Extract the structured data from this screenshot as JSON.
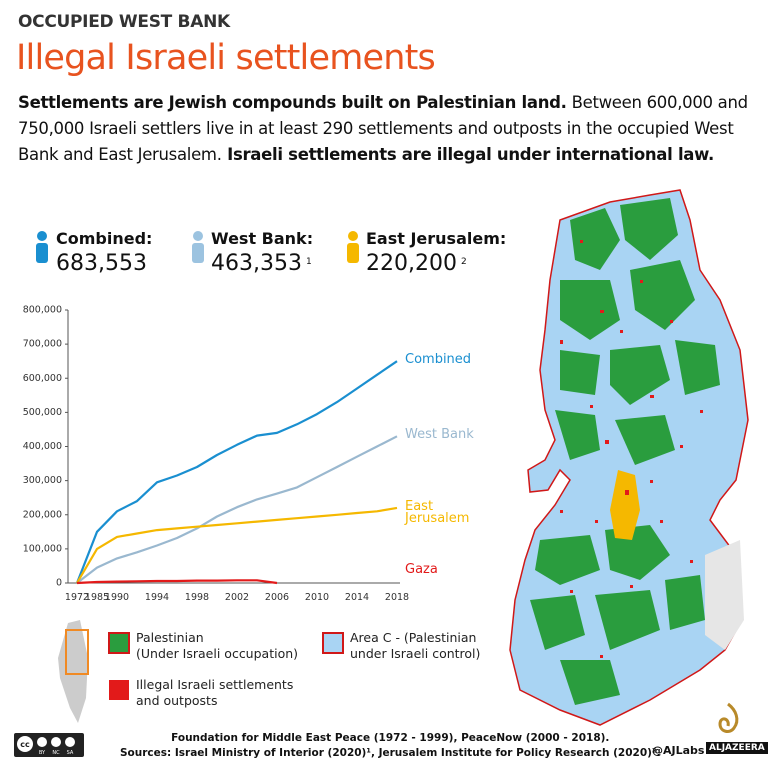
{
  "header": {
    "kicker": "OCCUPIED WEST BANK",
    "title": "Illegal Israeli settlements",
    "description": [
      {
        "text": "Settlements are Jewish compounds built on Palestinian land.",
        "bold": true
      },
      {
        "text": " Between 600,000 and 750,000 Israeli settlers live in at least 290 settlements and outposts in the occupied West Bank and East Jerusalem.",
        "bold": false
      },
      {
        "text": " Israeli settlements are illegal under international law.",
        "bold": true
      }
    ]
  },
  "stats": [
    {
      "label": "Combined:",
      "value": "683,553",
      "color": "#1a8fd0"
    },
    {
      "label": "West Bank:",
      "value": "463,353",
      "note": "1",
      "color": "#9cc3e0"
    },
    {
      "label": "East Jerusalem:",
      "value": "220,200",
      "note": "2",
      "color": "#f5b800"
    }
  ],
  "chart_data": {
    "type": "line",
    "categories": [
      "1972",
      "1985",
      "1990",
      null,
      "1994",
      null,
      "1998",
      null,
      "2002",
      null,
      "2006",
      null,
      "2010",
      null,
      "2014",
      null,
      "2018"
    ],
    "series": [
      {
        "name": "Combined",
        "color": "#1a8fd0",
        "values": [
          0,
          150000,
          210000,
          240000,
          295000,
          315000,
          340000,
          375000,
          405000,
          432000,
          440000,
          465000,
          495000,
          530000,
          570000,
          610000,
          650000
        ]
      },
      {
        "name": "West Bank",
        "color": "#9ab8cf",
        "values": [
          0,
          45000,
          72000,
          90000,
          110000,
          132000,
          160000,
          195000,
          222000,
          245000,
          262000,
          280000,
          310000,
          340000,
          370000,
          400000,
          430000
        ]
      },
      {
        "name": "East Jerusalem",
        "color": "#f5b800",
        "values": [
          0,
          100000,
          135000,
          145000,
          155000,
          160000,
          165000,
          170000,
          175000,
          180000,
          185000,
          190000,
          195000,
          200000,
          205000,
          210000,
          220000
        ]
      },
      {
        "name": "Gaza",
        "color": "#e21a1a",
        "values": [
          0,
          3000,
          4000,
          5000,
          6000,
          6000,
          7000,
          7000,
          8000,
          8000,
          0,
          null,
          null,
          null,
          null,
          null,
          null
        ]
      }
    ],
    "ylim": [
      0,
      800000
    ],
    "yticks": [
      0,
      {
        "value": 100000,
        "label": "100,000"
      },
      {
        "value": 200000,
        "label": "200,000"
      },
      {
        "value": 300000,
        "label": "300,000"
      },
      {
        "value": 400000,
        "label": "400,000"
      },
      {
        "value": 500000,
        "label": "500,000"
      },
      {
        "value": 600000,
        "label": "600,000"
      },
      {
        "value": 700000,
        "label": "700,000"
      },
      {
        "value": 800000,
        "label": "800,000"
      }
    ],
    "grid": false
  },
  "legend": [
    {
      "lines": [
        "Palestinian",
        "(Under Israeli occupation)"
      ]
    },
    {
      "lines": [
        "Illegal Israeli settlements",
        "and outposts"
      ]
    },
    {
      "lines": [
        "Area C - (Palestinian",
        "under Israeli control)"
      ]
    }
  ],
  "footer": {
    "sources": [
      "Foundation for Middle East Peace (1972 - 1999), PeaceNow (2000 - 2018).",
      "Sources: Israel Ministry of Interior (2020)¹, Jerusalem Institute for Policy Research (2020)²."
    ],
    "handle": "@AJLabs",
    "brand": "ALJAZEERA",
    "license": [
      "BY",
      "NC",
      "SA"
    ]
  }
}
